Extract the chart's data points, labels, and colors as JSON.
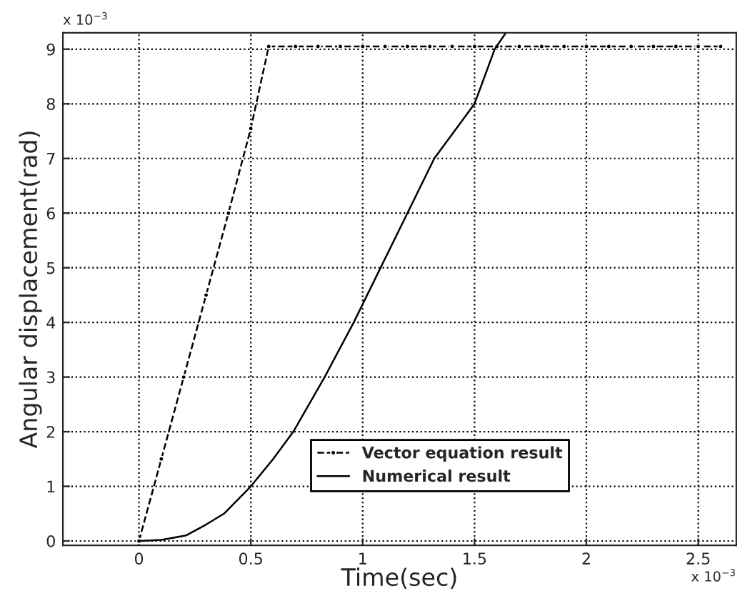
{
  "chart_data": {
    "type": "line",
    "xlabel": "Time(sec)",
    "ylabel": "Angular displacement(rad)",
    "annotations": [
      "x 10$^{−3}$",
      "x 10$^{−3}$"
    ],
    "xlim": [
      -0.34,
      2.67
    ],
    "ylim": [
      -0.08,
      9.3
    ],
    "xticks": [
      0,
      0.5,
      1,
      1.5,
      2,
      2.5
    ],
    "yticks": [
      0,
      1,
      2,
      3,
      4,
      5,
      6,
      7,
      8,
      9
    ],
    "grid": true,
    "legend": "bottom",
    "series": [
      {
        "name": "Vector equation result",
        "color": "#000000",
        "line_style": "dashed",
        "marker": "circle",
        "x": [
          0,
          0.1,
          0.2,
          0.3,
          0.4,
          0.5,
          0.58,
          0.7,
          0.8,
          0.9,
          1.0,
          1.1,
          1.2,
          1.3,
          1.4,
          1.5,
          1.6,
          1.7,
          1.8,
          1.9,
          2.0,
          2.1,
          2.2,
          2.3,
          2.4,
          2.5,
          2.6
        ],
        "values": [
          0,
          1.5,
          3,
          4.5,
          6,
          7.55,
          9.05,
          9.05,
          9.05,
          9.05,
          9.05,
          9.05,
          9.05,
          9.05,
          9.05,
          9.05,
          9.05,
          9.05,
          9.05,
          9.05,
          9.05,
          9.05,
          9.05,
          9.05,
          9.05,
          9.05,
          9.05
        ]
      },
      {
        "name": "Numerical result",
        "color": "#000000",
        "line_style": "solid",
        "marker": "none",
        "x": [
          0,
          0.1,
          0.21,
          0.3,
          0.38,
          0.5,
          0.6,
          0.69,
          0.83,
          0.96,
          1.08,
          1.2,
          1.32,
          1.5,
          1.59,
          1.64
        ],
        "values": [
          0,
          0.02,
          0.1,
          0.3,
          0.5,
          1,
          1.5,
          2,
          3,
          4,
          5,
          6,
          7,
          8,
          9,
          9.3
        ]
      }
    ]
  }
}
